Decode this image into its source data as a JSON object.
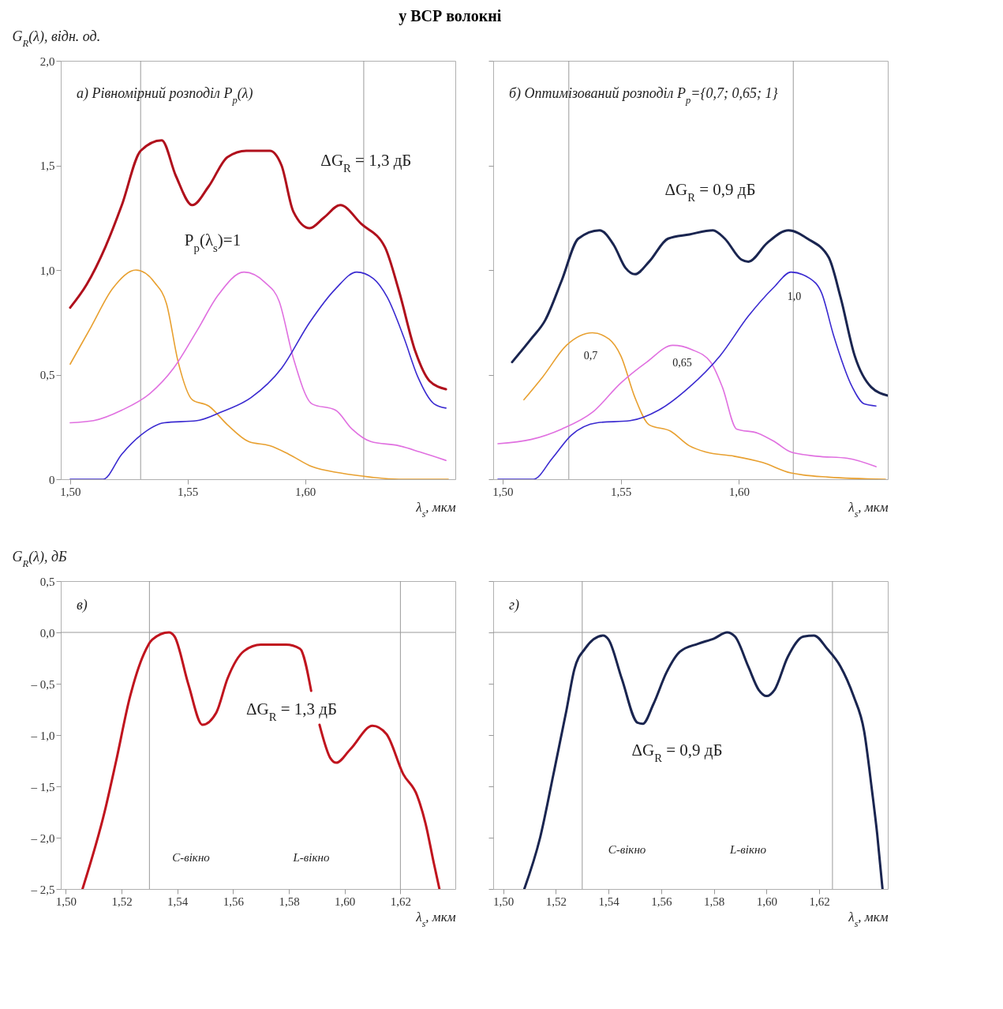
{
  "chart_data": [
    {
      "type": "line",
      "title": "у ВСР волокні",
      "ylabel": "G$_{R}$(λ), відн. од.",
      "xlabel": "λ$_{s}$, мкм",
      "xlim": [
        1.496,
        1.664
      ],
      "ylim": [
        0,
        2.0
      ],
      "xticks": [
        {
          "value": 1.5,
          "label": "1,50"
        },
        {
          "value": 1.55,
          "label": "1,55"
        },
        {
          "value": 1.6,
          "label": "1,60"
        }
      ],
      "yticks": [
        0,
        {
          "value": 0.5,
          "label": "0,5"
        },
        {
          "value": 1.0,
          "label": "1,0"
        },
        {
          "value": 1.5,
          "label": "1,5"
        },
        {
          "value": 2.0,
          "label": "2,0"
        }
      ],
      "grid": false,
      "series": [
        {
          "color": "#b0101c",
          "x": [
            1.5,
            1.507,
            1.515,
            1.522,
            1.53,
            1.539,
            1.545,
            1.552,
            1.559,
            1.567,
            1.575,
            1.585,
            1.59,
            1.595,
            1.602,
            1.608,
            1.615,
            1.624,
            1.634,
            1.64,
            1.647,
            1.653,
            1.66
          ],
          "values": [
            0.82,
            0.93,
            1.11,
            1.31,
            1.57,
            1.62,
            1.45,
            1.31,
            1.4,
            1.54,
            1.57,
            1.57,
            1.5,
            1.28,
            1.2,
            1.25,
            1.31,
            1.22,
            1.11,
            0.9,
            0.61,
            0.47,
            0.43
          ]
        },
        {
          "color": "#e8a030",
          "x": [
            1.5,
            1.509,
            1.518,
            1.528,
            1.536,
            1.541,
            1.546,
            1.552,
            1.559,
            1.567,
            1.576,
            1.585,
            1.593,
            1.603,
            1.615,
            1.628,
            1.64,
            1.661
          ],
          "values": [
            0.55,
            0.73,
            0.91,
            1.0,
            0.94,
            0.84,
            0.56,
            0.38,
            0.35,
            0.26,
            0.18,
            0.16,
            0.12,
            0.06,
            0.03,
            0.01,
            0,
            0
          ]
        },
        {
          "color": "#e070e0",
          "x": [
            1.5,
            1.51,
            1.522,
            1.534,
            1.544,
            1.554,
            1.563,
            1.574,
            1.583,
            1.589,
            1.595,
            1.603,
            1.613,
            1.62,
            1.628,
            1.64,
            1.649,
            1.66
          ],
          "values": [
            0.27,
            0.28,
            0.33,
            0.41,
            0.53,
            0.71,
            0.88,
            0.99,
            0.94,
            0.85,
            0.58,
            0.36,
            0.33,
            0.24,
            0.18,
            0.16,
            0.13,
            0.09
          ]
        },
        {
          "color": "#3a2ad0",
          "x": [
            1.5,
            1.514,
            1.522,
            1.53,
            1.54,
            1.554,
            1.564,
            1.577,
            1.59,
            1.602,
            1.613,
            1.622,
            1.629,
            1.635,
            1.642,
            1.648,
            1.655,
            1.66
          ],
          "values": [
            0,
            0,
            0.12,
            0.21,
            0.27,
            0.28,
            0.32,
            0.39,
            0.53,
            0.75,
            0.91,
            0.99,
            0.96,
            0.87,
            0.68,
            0.49,
            0.36,
            0.34
          ]
        }
      ],
      "ref_lines": [
        {
          "axis": "x",
          "value": 1.53
        },
        {
          "axis": "x",
          "value": 1.625
        }
      ],
      "annotations": [
        "а) Рівномірний розподіл P$_{p}$(λ)",
        {
          "text": "ΔG$_{R}$ = 1,3 дБ",
          "x": 1.626,
          "y": 1.52
        },
        "P$_{p}$(λ$_{s}$)=1"
      ]
    },
    {
      "type": "line",
      "xlabel": "λ$_{s}$, мкм",
      "xlim": [
        1.496,
        1.663
      ],
      "ylim": [
        0,
        2.0
      ],
      "tick_labels": "x",
      "xticks": [
        {
          "value": 1.5,
          "label": "1,50"
        },
        {
          "value": 1.55,
          "label": "1,55"
        },
        {
          "value": 1.6,
          "label": "1,60"
        }
      ],
      "yticks": [
        0,
        0.5,
        1.0,
        1.5,
        2.0
      ],
      "grid": false,
      "series": [
        {
          "color": "#1a2550",
          "x": [
            1.504,
            1.512,
            1.518,
            1.525,
            1.532,
            1.541,
            1.547,
            1.552,
            1.556,
            1.562,
            1.57,
            1.579,
            1.589,
            1.594,
            1.601,
            1.604,
            1.612,
            1.621,
            1.629,
            1.638,
            1.643,
            1.649,
            1.656,
            1.663
          ],
          "values": [
            0.56,
            0.67,
            0.76,
            0.95,
            1.15,
            1.19,
            1.12,
            1.01,
            0.98,
            1.04,
            1.15,
            1.17,
            1.19,
            1.15,
            1.05,
            1.04,
            1.13,
            1.19,
            1.15,
            1.06,
            0.87,
            0.59,
            0.44,
            0.4
          ]
        },
        {
          "color": "#e8a030",
          "x": [
            1.509,
            1.517,
            1.527,
            1.538,
            1.545,
            1.55,
            1.556,
            1.562,
            1.571,
            1.579,
            1.586,
            1.598,
            1.61,
            1.622,
            1.638,
            1.662
          ],
          "values": [
            0.38,
            0.49,
            0.64,
            0.7,
            0.67,
            0.59,
            0.39,
            0.26,
            0.23,
            0.16,
            0.13,
            0.11,
            0.08,
            0.03,
            0.01,
            0
          ]
        },
        {
          "color": "#e070e0",
          "x": [
            1.498,
            1.512,
            1.525,
            1.538,
            1.55,
            1.561,
            1.572,
            1.58,
            1.588,
            1.593,
            1.599,
            1.608,
            1.615,
            1.622,
            1.633,
            1.646,
            1.658
          ],
          "values": [
            0.17,
            0.19,
            0.24,
            0.32,
            0.46,
            0.56,
            0.64,
            0.62,
            0.56,
            0.44,
            0.24,
            0.22,
            0.18,
            0.13,
            0.11,
            0.1,
            0.06
          ]
        },
        {
          "color": "#3a2ad0",
          "x": [
            1.498,
            1.513,
            1.521,
            1.529,
            1.54,
            1.554,
            1.566,
            1.579,
            1.592,
            1.604,
            1.615,
            1.622,
            1.63,
            1.635,
            1.64,
            1.648,
            1.653,
            1.658
          ],
          "values": [
            0,
            0,
            0.1,
            0.21,
            0.27,
            0.28,
            0.33,
            0.44,
            0.59,
            0.78,
            0.92,
            0.99,
            0.96,
            0.89,
            0.69,
            0.44,
            0.36,
            0.35
          ]
        }
      ],
      "ref_lines": [
        {
          "axis": "x",
          "value": 1.528
        },
        {
          "axis": "x",
          "value": 1.623
        }
      ],
      "annotations": [
        "б) Оптимізований розподіл P$_{p}$={0,7; 0,65; 1}",
        "ΔG$_{R}$ = 0,9 дБ",
        "0,7",
        "0,65",
        {
          "text": "1,0",
          "x": 1.6234,
          "y": 0.87
        }
      ]
    },
    {
      "type": "line",
      "ylabel": "G$_{R}$(λ), дБ",
      "xlabel": "λ$_{s}$, мкм",
      "xlim": [
        1.4982,
        1.6397
      ],
      "ylim": [
        -2.5,
        0.5
      ],
      "xticks": [
        {
          "value": 1.5,
          "label": "1,50"
        },
        {
          "value": 1.52,
          "label": "1,52"
        },
        {
          "value": 1.54,
          "label": "1,54"
        },
        {
          "value": 1.56,
          "label": "1,56"
        },
        {
          "value": 1.58,
          "label": "1,58"
        },
        {
          "value": 1.6,
          "label": "1,60"
        },
        {
          "value": 1.62,
          "label": "1,62"
        }
      ],
      "yticks": [
        {
          "value": 0.5,
          "label": "0,5"
        },
        {
          "value": 0,
          "label": "0,0"
        },
        {
          "value": -0.5,
          "label": "– 0,5"
        },
        {
          "value": -1.0,
          "label": "– 1,0"
        },
        {
          "value": -1.5,
          "label": "– 1,5"
        },
        {
          "value": -2.0,
          "label": "– 2,0"
        },
        {
          "value": -2.5,
          "label": "– 2,5"
        }
      ],
      "grid": false,
      "series": [
        {
          "color": "#c0141e",
          "x": [
            1.506,
            1.514,
            1.518,
            1.523,
            1.528,
            1.531,
            1.537,
            1.539,
            1.544,
            1.549,
            1.554,
            1.558,
            1.564,
            1.57,
            1.579,
            1.584,
            1.588,
            1.5895,
            1.591,
            1.595,
            1.597,
            1.602,
            1.61,
            1.615,
            1.621,
            1.626,
            1.629,
            1.632,
            1.634
          ],
          "values": [
            -2.5,
            -1.74,
            -1.26,
            -0.63,
            -0.21,
            -0.07,
            0.0,
            -0.04,
            -0.51,
            -0.9,
            -0.78,
            -0.45,
            -0.18,
            -0.12,
            -0.12,
            -0.16,
            -0.57,
            null,
            -0.9,
            -1.23,
            -1.27,
            -1.14,
            -0.91,
            -0.99,
            -1.38,
            -1.59,
            -1.86,
            -2.25,
            -2.5
          ]
        }
      ],
      "ref_lines": [
        {
          "axis": "y",
          "value": 0
        },
        {
          "axis": "x",
          "value": 1.53
        },
        {
          "axis": "x",
          "value": 1.62
        }
      ],
      "annotations": [
        "в)",
        "ΔG$_{R}$ = 1,3 дБ",
        "C-вікно",
        "L-вікно"
      ]
    },
    {
      "type": "line",
      "xlabel": "λ$_{s}$, мкм",
      "xlim": [
        1.4962,
        1.646
      ],
      "ylim": [
        -2.5,
        0.5
      ],
      "tick_labels": "x",
      "xticks": [
        {
          "value": 1.5,
          "label": "1,50"
        },
        {
          "value": 1.52,
          "label": "1,52"
        },
        {
          "value": 1.54,
          "label": "1,54"
        },
        {
          "value": 1.56,
          "label": "1,56"
        },
        {
          "value": 1.58,
          "label": "1,58"
        },
        {
          "value": 1.6,
          "label": "1,60"
        },
        {
          "value": 1.62,
          "label": "1,62"
        }
      ],
      "yticks": [
        0.5,
        0,
        -0.5,
        -1.0,
        -1.5,
        -2.0,
        -2.5
      ],
      "grid": false,
      "series": [
        {
          "color": "#1a2550",
          "x": [
            1.508,
            1.514,
            1.519,
            1.524,
            1.527,
            1.531,
            1.538,
            1.54,
            1.545,
            1.551,
            1.553,
            1.557,
            1.562,
            1.567,
            1.574,
            1.58,
            1.585,
            1.588,
            1.593,
            1.597,
            1.6,
            1.603,
            1.608,
            1.614,
            1.618,
            1.623,
            1.628,
            1.633,
            1.637,
            1.64,
            1.642,
            1.644
          ],
          "values": [
            -2.5,
            -2.0,
            -1.39,
            -0.76,
            -0.36,
            -0.16,
            -0.03,
            -0.07,
            -0.45,
            -0.88,
            -0.89,
            -0.7,
            -0.39,
            -0.19,
            -0.11,
            -0.06,
            0.0,
            -0.04,
            -0.33,
            -0.56,
            -0.62,
            -0.56,
            -0.24,
            -0.04,
            -0.03,
            -0.16,
            -0.33,
            -0.62,
            -0.96,
            -1.54,
            -1.97,
            -2.5
          ]
        }
      ],
      "ref_lines": [
        {
          "axis": "y",
          "value": 0
        },
        {
          "axis": "x",
          "value": 1.53
        },
        {
          "axis": "x",
          "value": 1.625
        }
      ],
      "annotations": [
        "г)",
        "ΔG$_{R}$ = 0,9 дБ",
        "C-вікно",
        "L-вікно"
      ]
    }
  ]
}
